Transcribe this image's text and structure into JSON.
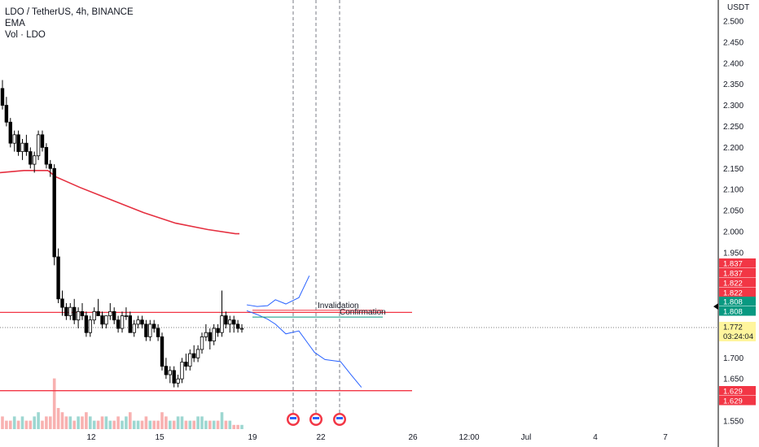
{
  "legend": {
    "symbol": "LDO / TetherUS, 4h, BINANCE",
    "ema": "EMA",
    "vol": "Vol · LDO"
  },
  "chart_data": {
    "type": "candlestick",
    "currency": "USDT",
    "y_ticks": [
      "2.500",
      "2.450",
      "2.400",
      "2.350",
      "2.300",
      "2.250",
      "2.200",
      "2.150",
      "2.100",
      "2.050",
      "2.000",
      "1.950",
      "1.700",
      "1.650",
      "1.550"
    ],
    "y_tick_values": [
      2.5,
      2.45,
      2.4,
      2.35,
      2.3,
      2.25,
      2.2,
      2.15,
      2.1,
      2.05,
      2.0,
      1.95,
      1.7,
      1.65,
      1.55
    ],
    "x_ticks": [
      "12",
      "15",
      "19",
      "22",
      "26",
      "12:00",
      "Jul",
      "4",
      "7"
    ],
    "candles": [
      [
        2.34,
        2.36,
        2.29,
        2.3
      ],
      [
        2.3,
        2.32,
        2.25,
        2.26
      ],
      [
        2.26,
        2.27,
        2.2,
        2.21
      ],
      [
        2.21,
        2.24,
        2.19,
        2.23
      ],
      [
        2.23,
        2.24,
        2.18,
        2.19
      ],
      [
        2.19,
        2.22,
        2.17,
        2.21
      ],
      [
        2.21,
        2.23,
        2.18,
        2.19
      ],
      [
        2.19,
        2.2,
        2.15,
        2.16
      ],
      [
        2.16,
        2.19,
        2.14,
        2.18
      ],
      [
        2.18,
        2.24,
        2.17,
        2.23
      ],
      [
        2.23,
        2.24,
        2.19,
        2.2
      ],
      [
        2.2,
        2.21,
        2.15,
        2.16
      ],
      [
        2.16,
        2.17,
        2.13,
        2.15
      ],
      [
        2.15,
        2.16,
        1.92,
        1.94
      ],
      [
        1.94,
        1.96,
        1.83,
        1.84
      ],
      [
        1.84,
        1.86,
        1.8,
        1.82
      ],
      [
        1.82,
        1.83,
        1.79,
        1.8
      ],
      [
        1.8,
        1.83,
        1.79,
        1.82
      ],
      [
        1.82,
        1.84,
        1.78,
        1.79
      ],
      [
        1.79,
        1.82,
        1.77,
        1.81
      ],
      [
        1.81,
        1.83,
        1.79,
        1.8
      ],
      [
        1.8,
        1.81,
        1.75,
        1.76
      ],
      [
        1.76,
        1.8,
        1.75,
        1.79
      ],
      [
        1.79,
        1.82,
        1.78,
        1.81
      ],
      [
        1.81,
        1.84,
        1.8,
        1.8
      ],
      [
        1.8,
        1.81,
        1.77,
        1.78
      ],
      [
        1.78,
        1.8,
        1.77,
        1.8
      ],
      [
        1.8,
        1.83,
        1.79,
        1.81
      ],
      [
        1.81,
        1.82,
        1.78,
        1.79
      ],
      [
        1.79,
        1.8,
        1.76,
        1.77
      ],
      [
        1.77,
        1.81,
        1.76,
        1.8
      ],
      [
        1.8,
        1.82,
        1.79,
        1.8
      ],
      [
        1.8,
        1.81,
        1.76,
        1.76
      ],
      [
        1.76,
        1.79,
        1.75,
        1.78
      ],
      [
        1.78,
        1.8,
        1.77,
        1.79
      ],
      [
        1.79,
        1.8,
        1.77,
        1.78
      ],
      [
        1.78,
        1.79,
        1.74,
        1.75
      ],
      [
        1.75,
        1.79,
        1.74,
        1.78
      ],
      [
        1.78,
        1.79,
        1.76,
        1.77
      ],
      [
        1.77,
        1.78,
        1.74,
        1.75
      ],
      [
        1.75,
        1.76,
        1.67,
        1.68
      ],
      [
        1.68,
        1.7,
        1.65,
        1.66
      ],
      [
        1.66,
        1.68,
        1.64,
        1.67
      ],
      [
        1.67,
        1.68,
        1.63,
        1.64
      ],
      [
        1.64,
        1.66,
        1.63,
        1.65
      ],
      [
        1.65,
        1.7,
        1.64,
        1.69
      ],
      [
        1.69,
        1.71,
        1.67,
        1.68
      ],
      [
        1.68,
        1.72,
        1.67,
        1.71
      ],
      [
        1.71,
        1.73,
        1.69,
        1.7
      ],
      [
        1.7,
        1.73,
        1.69,
        1.72
      ],
      [
        1.72,
        1.76,
        1.71,
        1.75
      ],
      [
        1.75,
        1.78,
        1.74,
        1.76
      ],
      [
        1.76,
        1.77,
        1.72,
        1.74
      ],
      [
        1.74,
        1.78,
        1.73,
        1.77
      ],
      [
        1.77,
        1.78,
        1.75,
        1.76
      ],
      [
        1.76,
        1.86,
        1.75,
        1.8
      ],
      [
        1.8,
        1.81,
        1.77,
        1.78
      ],
      [
        1.78,
        1.8,
        1.76,
        1.79
      ],
      [
        1.79,
        1.8,
        1.76,
        1.78
      ],
      [
        1.78,
        1.79,
        1.76,
        1.77
      ],
      [
        1.77,
        1.78,
        1.76,
        1.77
      ]
    ],
    "volumes": [
      3,
      2,
      2,
      3,
      2,
      3,
      2,
      2,
      3,
      4,
      2,
      3,
      3,
      12,
      5,
      4,
      3,
      3,
      2,
      3,
      3,
      4,
      3,
      2,
      2,
      3,
      3,
      2,
      2,
      3,
      2,
      3,
      4,
      2,
      2,
      2,
      3,
      2,
      2,
      2,
      4,
      3,
      2,
      2,
      3,
      3,
      2,
      2,
      2,
      3,
      3,
      2,
      2,
      2,
      2,
      4,
      2,
      2,
      1,
      1,
      1
    ],
    "ema": [
      [
        0,
        2.14
      ],
      [
        6,
        2.145
      ],
      [
        12,
        2.145
      ],
      [
        14,
        2.13
      ],
      [
        20,
        2.105
      ],
      [
        28,
        2.075
      ],
      [
        36,
        2.045
      ],
      [
        44,
        2.02
      ],
      [
        52,
        2.005
      ],
      [
        59,
        1.995
      ]
    ],
    "horizontal_levels": [
      {
        "price": 1.808,
        "color": "#f23645"
      },
      {
        "price": 1.622,
        "color": "#f23645"
      }
    ],
    "annotations": {
      "invalidation": {
        "label": "Invalidation",
        "price": 1.813,
        "color": "#f23645"
      },
      "confirmation": {
        "label": "Confirmation",
        "price": 1.797,
        "color": "#089981"
      },
      "upper_path": [
        [
          0,
          1.826
        ],
        [
          4,
          1.822
        ],
        [
          8,
          1.824
        ],
        [
          11,
          1.838
        ],
        [
          15,
          1.828
        ],
        [
          20,
          1.843
        ],
        [
          24,
          1.895
        ]
      ],
      "lower_path": [
        [
          0,
          1.812
        ],
        [
          4,
          1.803
        ],
        [
          8,
          1.792
        ],
        [
          11,
          1.78
        ],
        [
          15,
          1.757
        ],
        [
          20,
          1.764
        ],
        [
          26,
          1.713
        ],
        [
          30,
          1.696
        ],
        [
          36,
          1.691
        ],
        [
          40,
          1.66
        ],
        [
          44,
          1.63
        ]
      ]
    },
    "price_badges": [
      {
        "text": "1.837",
        "color": "#f23645"
      },
      {
        "text": "1.837",
        "color": "#f23645"
      },
      {
        "text": "1.822",
        "color": "#f23645"
      },
      {
        "text": "1.822",
        "color": "#f23645"
      },
      {
        "text": "1.808",
        "color": "#089981"
      },
      {
        "text": "1.808",
        "color": "#089981"
      },
      {
        "text": "1.772",
        "color": "#fff59d",
        "sub": "03:24:04"
      },
      {
        "text": "1.629",
        "color": "#f23645"
      },
      {
        "text": "1.629",
        "color": "#f23645"
      }
    ],
    "last_price": 1.772
  }
}
